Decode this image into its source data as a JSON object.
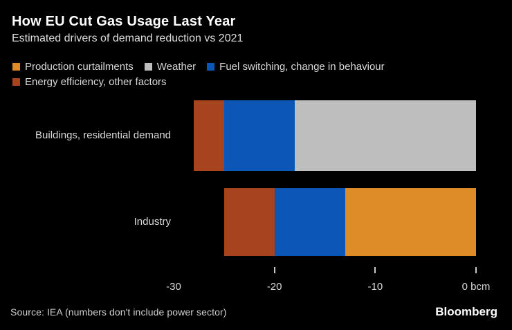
{
  "header": {
    "title": "How EU Cut Gas Usage Last Year",
    "subtitle": "Estimated drivers of demand reduction vs 2021"
  },
  "colors": {
    "background": "#000000",
    "title_text": "#FFFFFF",
    "body_text": "#D9D9D9",
    "axis_tick": "#C8C8C8"
  },
  "legend": {
    "rows": [
      [
        "Production curtailments",
        "Weather",
        "Fuel switching, change in behaviour"
      ],
      [
        "Energy efficiency, other factors"
      ]
    ]
  },
  "chart_data": {
    "type": "bar",
    "stacked": true,
    "orientation": "horizontal",
    "unit": "bcm",
    "title": "How EU Cut Gas Usage Last Year",
    "subtitle": "Estimated drivers of demand reduction vs 2021",
    "categories": [
      "Buildings, residential demand",
      "Industry"
    ],
    "series": [
      {
        "name": "Production curtailments",
        "color": "#DD8C28",
        "values": [
          0,
          -13
        ]
      },
      {
        "name": "Weather",
        "color": "#BEBEBE",
        "values": [
          -18,
          0
        ]
      },
      {
        "name": "Fuel switching, change in behaviour",
        "color": "#0B56B7",
        "values": [
          -7,
          -7
        ]
      },
      {
        "name": "Energy efficiency, other factors",
        "color": "#A8431F",
        "values": [
          -3,
          -5
        ]
      }
    ],
    "stack_order_left_to_right": [
      "Energy efficiency, other factors",
      "Fuel switching, change in behaviour",
      "Weather",
      "Production curtailments"
    ],
    "xlim": [
      -30,
      0
    ],
    "xticks": [
      {
        "value": -30,
        "label": "-30",
        "show_tick_mark": false
      },
      {
        "value": -20,
        "label": "-20",
        "show_tick_mark": true
      },
      {
        "value": -10,
        "label": "-10",
        "show_tick_mark": true
      },
      {
        "value": 0,
        "label": "0 bcm",
        "show_tick_mark": true
      }
    ],
    "grid": false,
    "legend_position": "top"
  },
  "footer": {
    "source": "Source: IEA (numbers don't include power sector)",
    "brand": "Bloomberg"
  }
}
